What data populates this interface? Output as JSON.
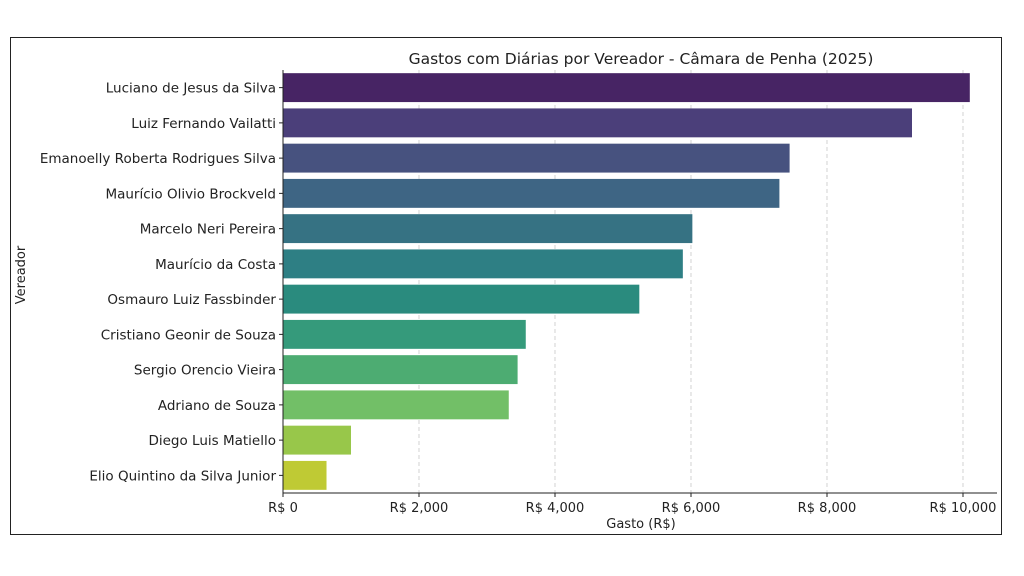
{
  "chart_data": {
    "type": "bar",
    "orientation": "horizontal",
    "title": "Gastos com Diárias por Vereador - Câmara de Penha (2025)",
    "xlabel": "Gasto (R$)",
    "ylabel": "Vereador",
    "xlim": [
      0,
      10500
    ],
    "x_ticks": [
      0,
      2000,
      4000,
      6000,
      8000,
      10000
    ],
    "x_tick_labels": [
      "R$ 0",
      "R$ 2,000",
      "R$ 4,000",
      "R$ 6,000",
      "R$ 8,000",
      "R$ 10,000"
    ],
    "grid": "vertical-dashed",
    "categories": [
      "Luciano de Jesus da Silva",
      "Luiz Fernando Vailatti",
      "Emanoelly Roberta Rodrigues Silva",
      "Maurício Olivio Brockveld",
      "Marcelo Neri Pereira",
      "Maurício da Costa",
      "Osmauro Luiz Fassbinder",
      "Cristiano Geonir de Souza",
      "Sergio Orencio Vieira",
      "Adriano de Souza",
      "Diego Luis Matiello",
      "Elio Quintino da Silva Junior"
    ],
    "values": [
      10100,
      9250,
      7450,
      7300,
      6020,
      5880,
      5240,
      3570,
      3450,
      3320,
      1000,
      640
    ],
    "colors": [
      "#472464",
      "#4b3f7a",
      "#47527f",
      "#3e6584",
      "#367283",
      "#2e7f84",
      "#2a8b7e",
      "#359a7b",
      "#4dac72",
      "#72bf67",
      "#98c74a",
      "#bfca34"
    ]
  }
}
